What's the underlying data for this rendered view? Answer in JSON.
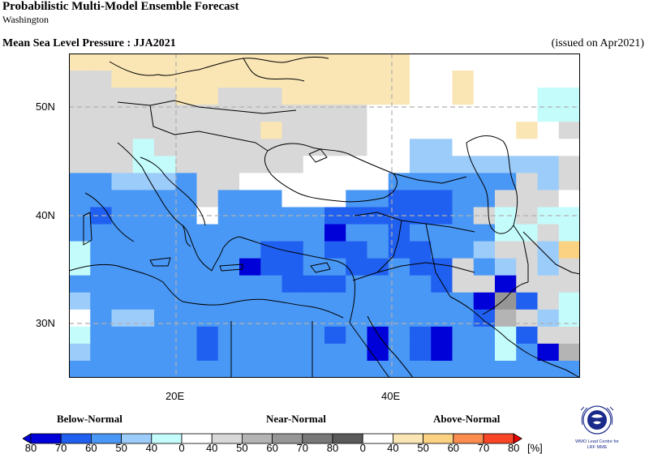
{
  "header": {
    "title": "Probabilistic Multi-Model Ensemble Forecast",
    "subtitle": "Washington",
    "variable": "Mean Sea Level Pressure : JJA2021",
    "issued": "(issued on Apr2021)"
  },
  "axes": {
    "lat_ticks": [
      "50N",
      "40N",
      "30N"
    ],
    "lon_ticks": [
      "20E",
      "40E"
    ]
  },
  "legend": {
    "categories": [
      "Below-Normal",
      "Near-Normal",
      "Above-Normal"
    ],
    "tick_labels": [
      "80",
      "70",
      "60",
      "50",
      "40",
      "0",
      "40",
      "50",
      "60",
      "70",
      "80",
      "0",
      "40",
      "50",
      "60",
      "70",
      "80"
    ],
    "unit": "[%]"
  },
  "colors": {
    "below": [
      "#0000d8",
      "#2060f0",
      "#4a98f5",
      "#9cccfa",
      "#c4fcfc"
    ],
    "near": [
      "#d8d8d8",
      "#b4b4b4",
      "#969696",
      "#787878",
      "#5a5a5a"
    ],
    "above": [
      "#fae6b4",
      "#fad282",
      "#fa8c50",
      "#fa4628",
      "#e60000"
    ]
  },
  "logo": {
    "line1": "WMO Lead Centre for",
    "line2": "LRF MME"
  }
}
